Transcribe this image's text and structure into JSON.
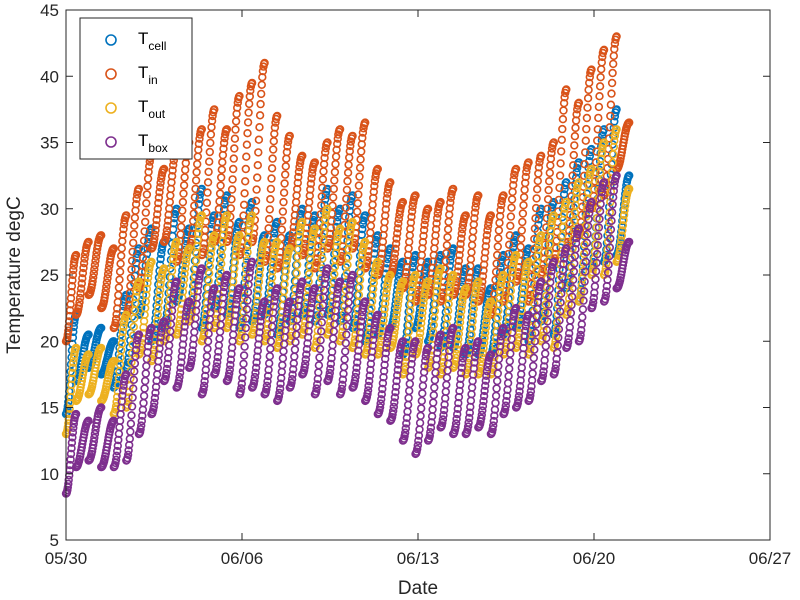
{
  "chart_data": {
    "type": "scatter",
    "xlabel": "Date",
    "ylabel": "Temperature degC",
    "ylim": [
      5,
      45
    ],
    "yticks": [
      5,
      10,
      15,
      20,
      25,
      30,
      35,
      40,
      45
    ],
    "xlim": [
      "05/30",
      "06/27"
    ],
    "xticks": [
      "05/30",
      "06/06",
      "06/13",
      "06/20",
      "06/27"
    ],
    "legend_position": "top-left",
    "grid": false,
    "marker": "open-circle",
    "series": [
      {
        "name": "T",
        "sub": "cell",
        "color": "#0072bd",
        "x": [
          0.0,
          0.4,
          0.9,
          1.4,
          1.9,
          2.4,
          2.9,
          3.4,
          3.9,
          4.4,
          4.9,
          5.4,
          5.9,
          6.4,
          6.9,
          7.4,
          7.9,
          8.4,
          8.9,
          9.4,
          9.9,
          10.4,
          10.9,
          11.4,
          11.9,
          12.4,
          12.9,
          13.4,
          13.9,
          14.4,
          14.9,
          15.4,
          15.9,
          16.4,
          16.9,
          17.4,
          17.9,
          18.4,
          18.9,
          19.4,
          19.9,
          20.4,
          20.9,
          21.4,
          21.9,
          22.4
        ],
        "lo": [
          14.5,
          17.0,
          18.0,
          17.5,
          16.5,
          18.0,
          22.0,
          20.0,
          21.0,
          23.0,
          22.0,
          21.0,
          22.5,
          22.0,
          21.0,
          21.5,
          22.0,
          20.5,
          21.5,
          22.0,
          21.5,
          22.0,
          21.5,
          21.0,
          20.0,
          20.5,
          21.0,
          19.0,
          21.0,
          20.0,
          19.5,
          19.5,
          19.0,
          19.0,
          19.0,
          20.5,
          21.0,
          20.0,
          21.5,
          20.5,
          24.0,
          23.0,
          25.5,
          26.0,
          26.5,
          29.5
        ],
        "hi": [
          21.0,
          22.0,
          20.5,
          21.0,
          20.0,
          23.5,
          27.0,
          28.5,
          27.5,
          30.0,
          28.5,
          31.5,
          29.5,
          31.0,
          29.0,
          30.5,
          28.0,
          29.0,
          28.0,
          30.0,
          29.5,
          31.5,
          30.0,
          31.0,
          29.5,
          28.0,
          27.0,
          26.0,
          26.5,
          26.0,
          26.5,
          27.0,
          25.5,
          25.5,
          24.0,
          26.5,
          28.0,
          27.0,
          30.0,
          30.5,
          32.0,
          33.5,
          34.5,
          36.0,
          37.5,
          32.5
        ]
      },
      {
        "name": "T",
        "sub": "in",
        "color": "#d95319",
        "x": [
          0.0,
          0.4,
          0.9,
          1.4,
          1.9,
          2.4,
          2.9,
          3.4,
          3.9,
          4.4,
          4.9,
          5.4,
          5.9,
          6.4,
          6.9,
          7.4,
          7.9,
          8.4,
          8.9,
          9.4,
          9.9,
          10.4,
          10.9,
          11.4,
          11.9,
          12.4,
          12.9,
          13.4,
          13.9,
          14.4,
          14.9,
          15.4,
          15.9,
          16.4,
          16.9,
          17.4,
          17.9,
          18.4,
          18.9,
          19.4,
          19.9,
          20.4,
          20.9,
          21.4,
          21.9,
          22.4
        ],
        "lo": [
          20.0,
          22.0,
          23.5,
          22.5,
          21.0,
          22.0,
          24.0,
          27.0,
          27.5,
          26.0,
          27.0,
          26.5,
          27.5,
          27.5,
          26.5,
          27.5,
          26.0,
          25.5,
          27.0,
          26.5,
          25.5,
          27.0,
          26.0,
          27.0,
          25.5,
          25.0,
          25.0,
          24.0,
          23.0,
          23.5,
          23.0,
          23.5,
          23.5,
          23.0,
          22.0,
          23.0,
          24.5,
          23.0,
          25.0,
          26.0,
          27.0,
          28.0,
          30.0,
          31.0,
          33.0,
          35.0
        ],
        "hi": [
          27.0,
          26.5,
          27.5,
          28.0,
          27.0,
          29.5,
          31.5,
          34.0,
          33.0,
          34.5,
          35.0,
          36.0,
          37.5,
          36.0,
          38.5,
          39.5,
          41.0,
          37.0,
          35.5,
          34.0,
          33.5,
          35.0,
          36.0,
          35.5,
          36.5,
          33.0,
          32.0,
          30.5,
          31.0,
          30.0,
          30.5,
          31.5,
          29.5,
          31.0,
          29.5,
          31.0,
          33.0,
          33.5,
          34.0,
          35.0,
          39.0,
          38.0,
          40.5,
          42.0,
          43.0,
          36.5
        ]
      },
      {
        "name": "T",
        "sub": "out",
        "color": "#edb120",
        "x": [
          0.0,
          0.4,
          0.9,
          1.4,
          1.9,
          2.4,
          2.9,
          3.4,
          3.9,
          4.4,
          4.9,
          5.4,
          5.9,
          6.4,
          6.9,
          7.4,
          7.9,
          8.4,
          8.9,
          9.4,
          9.9,
          10.4,
          10.9,
          11.4,
          11.9,
          12.4,
          12.9,
          13.4,
          13.9,
          14.4,
          14.9,
          15.4,
          15.9,
          16.4,
          16.9,
          17.4,
          17.9,
          18.4,
          18.9,
          19.4,
          19.9,
          20.4,
          20.9,
          21.4,
          21.9,
          22.4
        ],
        "lo": [
          13.0,
          15.5,
          16.0,
          15.5,
          14.5,
          15.0,
          19.0,
          18.5,
          20.0,
          20.5,
          21.5,
          20.0,
          21.0,
          21.0,
          20.0,
          20.5,
          20.0,
          19.5,
          20.0,
          20.5,
          19.5,
          20.5,
          20.0,
          19.5,
          19.0,
          19.0,
          19.5,
          17.5,
          19.0,
          18.0,
          17.5,
          18.0,
          17.5,
          17.5,
          17.5,
          19.0,
          19.5,
          19.0,
          20.0,
          19.5,
          22.0,
          23.0,
          25.0,
          25.0,
          26.0,
          28.5
        ],
        "hi": [
          20.0,
          19.5,
          19.0,
          19.5,
          18.5,
          22.0,
          24.5,
          26.0,
          25.5,
          27.5,
          27.0,
          29.5,
          28.0,
          29.5,
          28.0,
          29.5,
          27.5,
          27.5,
          27.0,
          29.0,
          28.5,
          30.0,
          28.5,
          29.0,
          27.5,
          26.0,
          25.0,
          24.5,
          25.0,
          24.5,
          25.5,
          25.0,
          24.0,
          24.5,
          23.0,
          25.0,
          26.5,
          26.0,
          28.0,
          29.5,
          30.5,
          32.0,
          33.0,
          35.0,
          36.0,
          31.5
        ]
      },
      {
        "name": "T",
        "sub": "box",
        "color": "#7e2f8e",
        "x": [
          0.0,
          0.4,
          0.9,
          1.4,
          1.9,
          2.4,
          2.9,
          3.4,
          3.9,
          4.4,
          4.9,
          5.4,
          5.9,
          6.4,
          6.9,
          7.4,
          7.9,
          8.4,
          8.9,
          9.4,
          9.9,
          10.4,
          10.9,
          11.4,
          11.9,
          12.4,
          12.9,
          13.4,
          13.9,
          14.4,
          14.9,
          15.4,
          15.9,
          16.4,
          16.9,
          17.4,
          17.9,
          18.4,
          18.9,
          19.4,
          19.9,
          20.4,
          20.9,
          21.4,
          21.9,
          22.4
        ],
        "lo": [
          8.5,
          10.5,
          11.0,
          10.5,
          10.5,
          11.0,
          13.0,
          14.5,
          17.0,
          16.5,
          18.0,
          16.0,
          17.5,
          17.0,
          16.0,
          16.5,
          16.0,
          15.5,
          16.5,
          17.5,
          16.0,
          17.0,
          16.0,
          16.5,
          15.5,
          14.5,
          14.0,
          12.5,
          11.5,
          12.5,
          13.5,
          13.0,
          13.0,
          13.5,
          13.0,
          14.5,
          15.0,
          15.5,
          17.0,
          17.5,
          19.5,
          20.0,
          22.5,
          23.0,
          24.0,
          25.0
        ],
        "hi": [
          14.0,
          14.5,
          14.0,
          15.0,
          14.0,
          17.5,
          20.5,
          21.0,
          21.5,
          24.5,
          23.0,
          25.5,
          24.0,
          25.0,
          24.0,
          26.0,
          23.0,
          24.0,
          23.0,
          24.5,
          24.0,
          25.5,
          24.5,
          25.0,
          23.0,
          22.0,
          21.0,
          20.0,
          20.0,
          19.5,
          20.5,
          21.0,
          19.5,
          20.0,
          19.0,
          21.0,
          22.5,
          22.0,
          24.5,
          26.0,
          27.0,
          28.5,
          30.5,
          32.0,
          32.5,
          27.5
        ]
      }
    ]
  }
}
